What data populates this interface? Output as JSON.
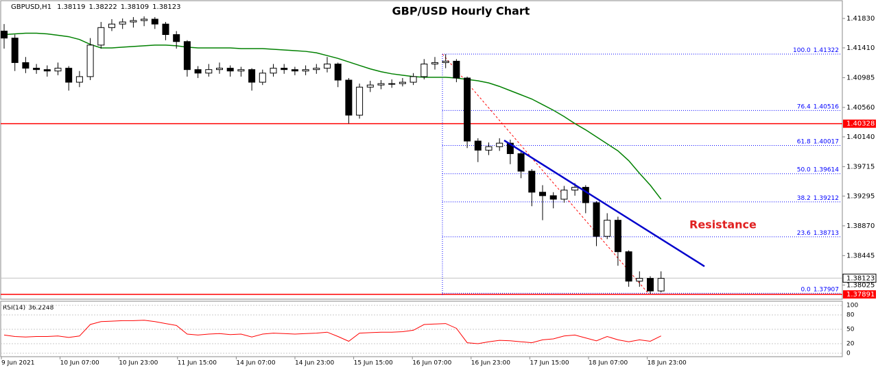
{
  "chart_data": {
    "type": "candlestick",
    "title": "GBP/USD Hourly Chart",
    "symbol": "GBPUSD,H1",
    "header_ohlc": [
      1.38119,
      1.38222,
      1.38109,
      1.38123
    ],
    "up_color": "#ffffff",
    "down_color": "#000000",
    "open": [
      1.4165,
      1.4155,
      1.412,
      1.4112,
      1.411,
      1.4108,
      1.4112,
      1.4092,
      1.41,
      1.4145,
      1.417,
      1.4175,
      1.4178,
      1.418,
      1.4182,
      1.4175,
      1.416,
      1.415,
      1.411,
      1.4105,
      1.411,
      1.4112,
      1.4108,
      1.411,
      1.4092,
      1.4105,
      1.4112,
      1.411,
      1.4108,
      1.411,
      1.4112,
      1.4118,
      1.4095,
      1.4045,
      1.4085,
      1.4088,
      1.409,
      1.409,
      1.4092,
      1.41,
      1.4118,
      1.412,
      1.4122,
      1.4098,
      1.4008,
      1.3995,
      1.4,
      1.4005,
      1.399,
      1.3965,
      1.3935,
      1.393,
      1.3925,
      1.3938,
      1.3942,
      1.392,
      1.3872,
      1.3895,
      1.385,
      1.3808,
      1.3812,
      1.3794
    ],
    "high": [
      1.4175,
      1.416,
      1.4128,
      1.4118,
      1.4116,
      1.412,
      1.4115,
      1.4108,
      1.4155,
      1.4178,
      1.4182,
      1.4183,
      1.4185,
      1.4186,
      1.4185,
      1.4178,
      1.4165,
      1.4152,
      1.4115,
      1.4118,
      1.412,
      1.4116,
      1.4114,
      1.4112,
      1.411,
      1.4118,
      1.4118,
      1.4114,
      1.4116,
      1.4118,
      1.4128,
      1.412,
      1.4098,
      1.409,
      1.4094,
      1.4095,
      1.4096,
      1.4098,
      1.4105,
      1.4125,
      1.4128,
      1.4132,
      1.4125,
      1.41,
      1.4012,
      1.4006,
      1.4012,
      1.401,
      1.3995,
      1.3968,
      1.3945,
      1.3935,
      1.3944,
      1.3948,
      1.3945,
      1.3922,
      1.3905,
      1.39,
      1.3852,
      1.3822,
      1.3815,
      1.3822
    ],
    "low": [
      1.414,
      1.4108,
      1.4105,
      1.4104,
      1.41,
      1.4102,
      1.408,
      1.4085,
      1.4095,
      1.414,
      1.4165,
      1.4168,
      1.417,
      1.4172,
      1.4168,
      1.4152,
      1.414,
      1.41,
      1.4098,
      1.41,
      1.4104,
      1.41,
      1.41,
      1.408,
      1.4088,
      1.41,
      1.4104,
      1.4102,
      1.4102,
      1.4104,
      1.4106,
      1.4085,
      1.4033,
      1.404,
      1.4078,
      1.4082,
      1.4084,
      1.4086,
      1.4088,
      1.4096,
      1.411,
      1.4112,
      1.4092,
      1.3998,
      1.3978,
      1.3988,
      1.3994,
      1.3975,
      1.3955,
      1.3915,
      1.3895,
      1.3912,
      1.392,
      1.393,
      1.3905,
      1.3858,
      1.3868,
      1.383,
      1.38,
      1.38,
      1.379,
      1.3792
    ],
    "close": [
      1.4155,
      1.412,
      1.4112,
      1.411,
      1.4108,
      1.4112,
      1.4092,
      1.41,
      1.4145,
      1.417,
      1.4175,
      1.4178,
      1.418,
      1.4182,
      1.4175,
      1.416,
      1.415,
      1.411,
      1.4105,
      1.411,
      1.4112,
      1.4108,
      1.411,
      1.4092,
      1.4105,
      1.4112,
      1.411,
      1.4108,
      1.411,
      1.4112,
      1.4118,
      1.4095,
      1.4045,
      1.4085,
      1.4088,
      1.409,
      1.409,
      1.4092,
      1.41,
      1.4118,
      1.412,
      1.4122,
      1.4098,
      1.4008,
      1.3995,
      1.4,
      1.4005,
      1.399,
      1.3965,
      1.3935,
      1.393,
      1.3925,
      1.3938,
      1.3942,
      1.392,
      1.3872,
      1.3895,
      1.385,
      1.3808,
      1.3812,
      1.3794,
      1.3812
    ],
    "ma": {
      "color": "#008000",
      "values": [
        1.416,
        1.4161,
        1.4162,
        1.4162,
        1.4161,
        1.4159,
        1.4157,
        1.4153,
        1.4146,
        1.4141,
        1.4141,
        1.4142,
        1.4143,
        1.4144,
        1.4145,
        1.4145,
        1.4144,
        1.4142,
        1.4141,
        1.4141,
        1.4141,
        1.4141,
        1.414,
        1.414,
        1.414,
        1.4139,
        1.4138,
        1.4137,
        1.4136,
        1.4134,
        1.413,
        1.4126,
        1.4121,
        1.4116,
        1.4111,
        1.4107,
        1.4104,
        1.4102,
        1.41,
        1.4099,
        1.4099,
        1.4099,
        1.4098,
        1.4096,
        1.4094,
        1.4091,
        1.4086,
        1.408,
        1.4074,
        1.4068,
        1.406,
        1.4052,
        1.4043,
        1.4033,
        1.4024,
        1.4014,
        1.4004,
        1.3994,
        1.398,
        1.3962,
        1.3945,
        1.3925
      ]
    },
    "ylim": [
      1.37823,
      1.42074
    ],
    "yticks": [
      {
        "value": 1.4183,
        "label": "1.41830"
      },
      {
        "value": 1.4141,
        "label": "1.41410"
      },
      1.40985,
      {
        "value": 1.4056,
        "label": "1.40560"
      },
      {
        "value": 1.4014,
        "label": "1.40140"
      },
      1.39715,
      1.39295,
      {
        "value": 1.3887,
        "label": "1.38870"
      },
      1.38445,
      1.38025
    ],
    "x_labels": [
      "9 Jun 2021",
      "10 Jun 07:00",
      "10 Jun 23:00",
      "11 Jun 15:00",
      "14 Jun 07:00",
      "14 Jun 23:00",
      "15 Jun 15:00",
      "16 Jun 07:00",
      "16 Jun 23:00",
      "17 Jun 15:00",
      "18 Jun 07:00",
      "18 Jun 23:00"
    ],
    "hlines": [
      {
        "value": 1.40328,
        "color": "#ff0000"
      },
      {
        "value": 1.37891,
        "color": "#ff0000"
      }
    ],
    "current_price": 1.38123,
    "fib": {
      "color": "#0000ff",
      "levels": [
        {
          "ratio": {
            "value": 100,
            "label": "100.0"
          },
          "price": 1.41322
        },
        {
          "ratio": 76.4,
          "price": 1.40516
        },
        {
          "ratio": 61.8,
          "price": 1.40017
        },
        {
          "ratio": {
            "value": 50,
            "label": "50.0"
          },
          "price": 1.39614
        },
        {
          "ratio": 38.2,
          "price": 1.39212
        },
        {
          "ratio": 23.6,
          "price": 1.38713
        },
        {
          "ratio": {
            "value": 0,
            "label": "0.0"
          },
          "price": 1.37907
        }
      ]
    },
    "trendline": {
      "color": "#0000cc",
      "values": [
        1.4009,
        1.38292
      ]
    },
    "annotation": "Resistance",
    "rsi": {
      "name": "RSI(14)",
      "color": "#ff0000",
      "ylim": [
        0,
        100
      ],
      "yticks": [
        100,
        80,
        50,
        20,
        0
      ],
      "values": [
        38,
        35,
        34,
        35,
        35,
        36,
        33,
        36,
        60,
        66,
        67,
        68,
        68,
        69,
        66,
        62,
        58,
        40,
        38,
        40,
        41,
        39,
        40,
        34,
        40,
        42,
        41,
        40,
        41,
        42,
        44,
        35,
        25,
        42,
        43,
        44,
        44,
        45,
        48,
        60,
        61,
        62,
        52,
        22,
        20,
        24,
        27,
        26,
        24,
        22,
        28,
        30,
        36,
        38,
        32,
        26,
        35,
        28,
        24,
        28,
        25,
        36.2248
      ]
    }
  }
}
